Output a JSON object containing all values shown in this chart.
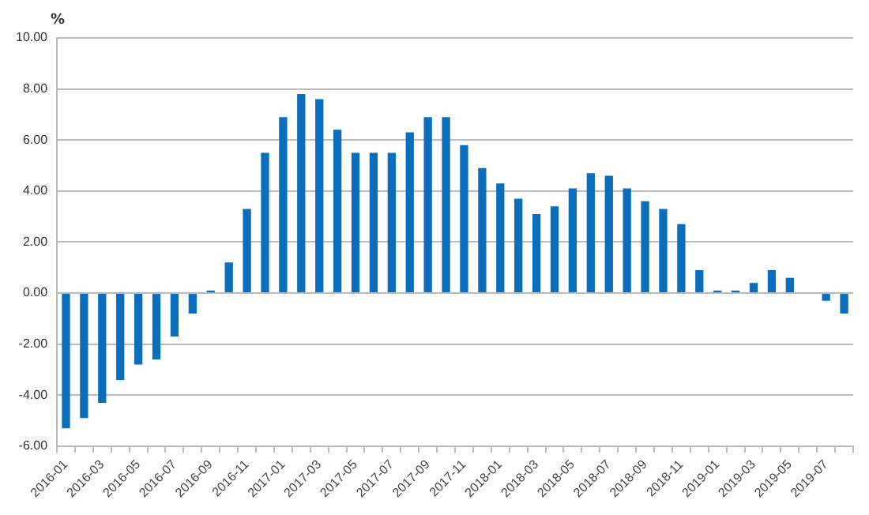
{
  "chart_data": {
    "type": "bar",
    "ylabel": "%",
    "categories": [
      "2016-01",
      null,
      "2016-03",
      null,
      "2016-05",
      null,
      "2016-07",
      null,
      "2016-09",
      null,
      "2016-11",
      null,
      "2017-01",
      null,
      "2017-03",
      null,
      "2017-05",
      null,
      "2017-07",
      null,
      "2017-09",
      null,
      "2017-11",
      null,
      "2018-01",
      null,
      "2018-03",
      null,
      "2018-05",
      null,
      "2018-07",
      null,
      "2018-09",
      null,
      "2018-11",
      null,
      "2019-01",
      null,
      "2019-03",
      null,
      "2019-05",
      null,
      "2019-07",
      null
    ],
    "values": [
      -5.3,
      -4.9,
      -4.3,
      -3.4,
      -2.8,
      -2.6,
      -1.7,
      -0.8,
      0.1,
      1.2,
      3.3,
      5.5,
      6.9,
      7.8,
      7.6,
      6.4,
      5.5,
      5.5,
      5.5,
      6.3,
      6.9,
      6.9,
      5.8,
      4.9,
      4.3,
      3.7,
      3.1,
      3.4,
      4.1,
      4.7,
      4.6,
      4.1,
      3.6,
      3.3,
      2.7,
      0.9,
      0.1,
      0.1,
      0.4,
      0.9,
      0.6,
      0,
      -0.3,
      -0.8
    ],
    "color": "#0a6ebd",
    "ylim": [
      -6,
      10
    ],
    "yticks": [
      {
        "value": -6,
        "label": "-6.00"
      },
      {
        "value": -4,
        "label": "-4.00"
      },
      {
        "value": -2,
        "label": "-2.00"
      },
      {
        "value": 0,
        "label": "0.00"
      },
      {
        "value": 2,
        "label": "2.00"
      },
      {
        "value": 4,
        "label": "4.00"
      },
      {
        "value": 6,
        "label": "6.00"
      },
      {
        "value": 8,
        "label": "8.00"
      },
      {
        "value": 10,
        "label": "10.00"
      }
    ],
    "grid": "y",
    "legend": false
  }
}
